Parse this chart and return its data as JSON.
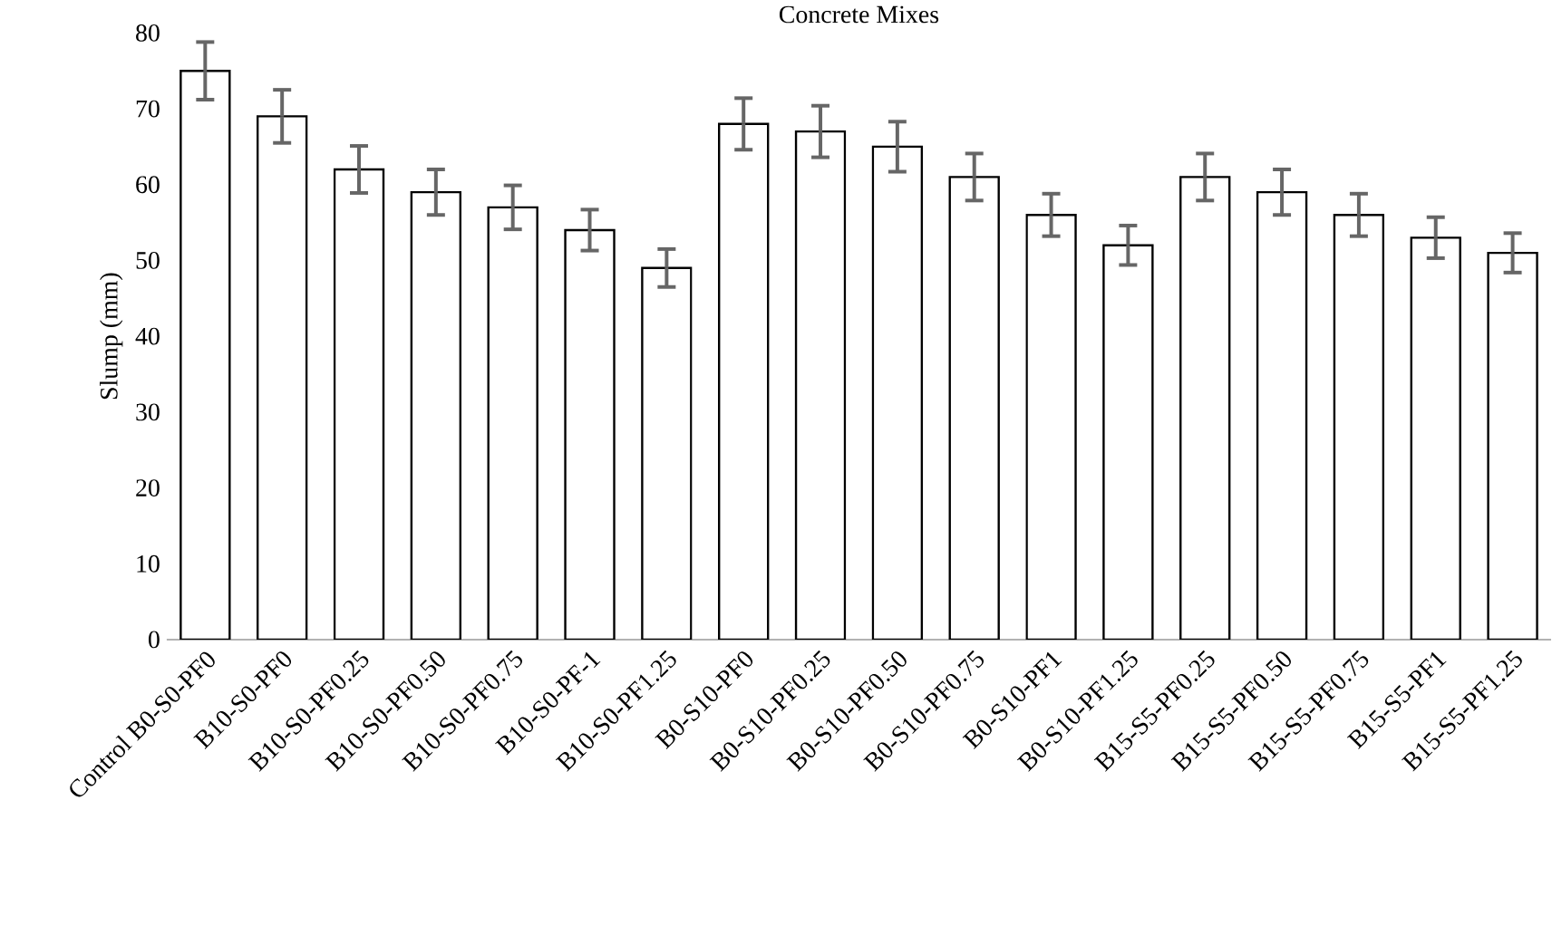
{
  "chart_data": {
    "type": "bar",
    "title": "Concrete Mixes",
    "ylabel": "Slump (mm)",
    "categories": [
      "Control B0-S0-PF0",
      "B10-S0-PF0",
      "B10-S0-PF0.25",
      "B10-S0-PF0.50",
      "B10-S0-PF0.75",
      "B10-S0-PF-1",
      "B10-S0-PF1.25",
      "B0-S10-PF0",
      "B0-S10-PF0.25",
      "B0-S10-PF0.50",
      "B0-S10-PF0.75",
      "B0-S10-PF1",
      "B0-S10-PF1.25",
      "B15-S5-PF0.25",
      "B15-S5-PF0.50",
      "B15-S5-PF0.75",
      "B15-S5-PF1",
      "B15-S5-PF1.25"
    ],
    "values": [
      75,
      69,
      62,
      59,
      57,
      54,
      49,
      68,
      67,
      65,
      61,
      56,
      52,
      61,
      59,
      56,
      53,
      51
    ],
    "errors": [
      3.8,
      3.5,
      3.1,
      3.0,
      2.9,
      2.7,
      2.5,
      3.4,
      3.4,
      3.3,
      3.1,
      2.8,
      2.6,
      3.1,
      3.0,
      2.8,
      2.7,
      2.6
    ],
    "color": "#000000",
    "ylim": [
      0,
      80
    ],
    "yticks": [
      0,
      10,
      20,
      30,
      40,
      50,
      60,
      70,
      80
    ],
    "grid": false
  }
}
